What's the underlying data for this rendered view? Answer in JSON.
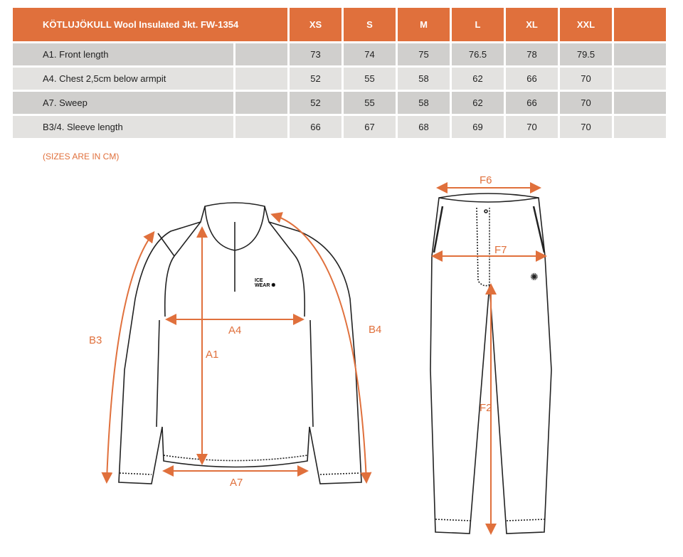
{
  "table": {
    "title": "KÖTLUJÖKULL Wool Insulated Jkt. FW-1354",
    "sizes": [
      "XS",
      "S",
      "M",
      "L",
      "XL",
      "XXL"
    ],
    "rows": [
      {
        "label": "A1. Front length",
        "values": [
          "73",
          "74",
          "75",
          "76.5",
          "78",
          "79.5"
        ]
      },
      {
        "label": "A4. Chest 2,5cm below armpit",
        "values": [
          "52",
          "55",
          "58",
          "62",
          "66",
          "70"
        ]
      },
      {
        "label": "A7. Sweep",
        "values": [
          "52",
          "55",
          "58",
          "62",
          "66",
          "70"
        ]
      },
      {
        "label": "B3/4. Sleeve length",
        "values": [
          "66",
          "67",
          "68",
          "69",
          "70",
          "70"
        ]
      }
    ]
  },
  "note": "(SIZES ARE IN CM)",
  "diagram": {
    "labels": {
      "a1": "A1",
      "a4": "A4",
      "a7": "A7",
      "b3": "B3",
      "b4": "B4",
      "f2": "F2",
      "f6": "F6",
      "f7": "F7"
    },
    "logo": "ICE WEAR",
    "accent": "#e0703c"
  }
}
